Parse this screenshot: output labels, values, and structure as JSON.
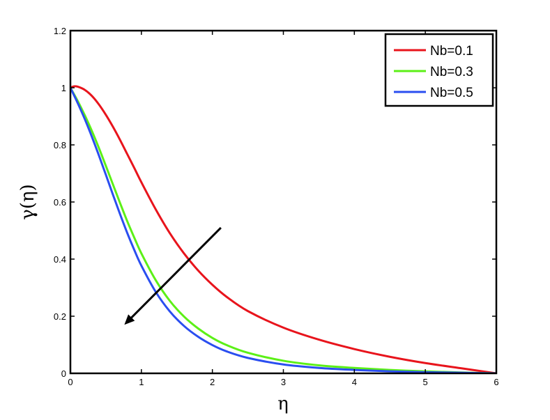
{
  "chart_data": {
    "type": "line",
    "title": "",
    "xlabel": "η",
    "ylabel": "γ(η)",
    "xlim": [
      0,
      6
    ],
    "ylim": [
      0,
      1.2
    ],
    "xticks": [
      0,
      1,
      2,
      3,
      4,
      5,
      6
    ],
    "yticks": [
      0,
      0.2,
      0.4,
      0.6,
      0.8,
      1,
      1.2
    ],
    "xtick_labels": [
      "0",
      "1",
      "2",
      "3",
      "4",
      "5",
      "6"
    ],
    "ytick_labels": [
      "0",
      "0.2",
      "0.4",
      "0.6",
      "0.8",
      "1",
      "1.2"
    ],
    "grid": false,
    "legend_position": "top-right",
    "series": [
      {
        "name": "Nb=0.1",
        "color": "#e8141c",
        "x": [
          0,
          0.05,
          0.1,
          0.2,
          0.3,
          0.4,
          0.5,
          0.6,
          0.7,
          0.8,
          0.9,
          1.0,
          1.2,
          1.4,
          1.6,
          1.8,
          2.0,
          2.2,
          2.5,
          3.0,
          3.5,
          4.0,
          4.5,
          5.0,
          5.5,
          6.0
        ],
        "y": [
          1.0,
          1.005,
          1.004,
          0.993,
          0.972,
          0.942,
          0.905,
          0.863,
          0.817,
          0.768,
          0.719,
          0.669,
          0.575,
          0.491,
          0.42,
          0.36,
          0.31,
          0.268,
          0.218,
          0.16,
          0.118,
          0.085,
          0.058,
          0.036,
          0.018,
          0.0
        ]
      },
      {
        "name": "Nb=0.3",
        "color": "#5cf017",
        "x": [
          0,
          0.1,
          0.2,
          0.3,
          0.4,
          0.5,
          0.6,
          0.7,
          0.8,
          0.9,
          1.0,
          1.2,
          1.4,
          1.6,
          1.8,
          2.0,
          2.2,
          2.5,
          3.0,
          3.5,
          4.0,
          4.5,
          5.0,
          5.5,
          6.0
        ],
        "y": [
          1.0,
          0.955,
          0.905,
          0.85,
          0.79,
          0.726,
          0.661,
          0.596,
          0.533,
          0.475,
          0.42,
          0.327,
          0.254,
          0.199,
          0.157,
          0.124,
          0.099,
          0.072,
          0.044,
          0.028,
          0.019,
          0.012,
          0.007,
          0.003,
          0.0
        ]
      },
      {
        "name": "Nb=0.5",
        "color": "#2a4ef0",
        "x": [
          0,
          0.1,
          0.2,
          0.3,
          0.4,
          0.5,
          0.6,
          0.7,
          0.8,
          0.9,
          1.0,
          1.2,
          1.4,
          1.6,
          1.8,
          2.0,
          2.2,
          2.5,
          3.0,
          3.5,
          4.0,
          4.5,
          5.0,
          5.5,
          6.0
        ],
        "y": [
          1.0,
          0.948,
          0.892,
          0.83,
          0.764,
          0.695,
          0.625,
          0.557,
          0.492,
          0.432,
          0.377,
          0.286,
          0.217,
          0.166,
          0.128,
          0.099,
          0.077,
          0.054,
          0.031,
          0.019,
          0.012,
          0.007,
          0.004,
          0.002,
          0.0
        ]
      }
    ],
    "annotations": [
      {
        "type": "arrow",
        "from": [
          2.12,
          0.51
        ],
        "to": [
          0.76,
          0.17
        ],
        "color": "#000000"
      }
    ]
  }
}
